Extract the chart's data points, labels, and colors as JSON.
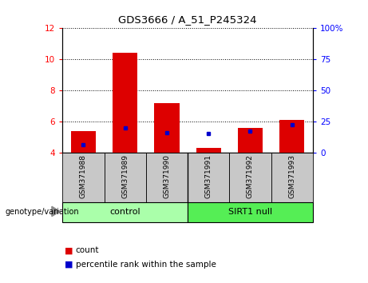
{
  "title": "GDS3666 / A_51_P245324",
  "samples": [
    "GSM371988",
    "GSM371989",
    "GSM371990",
    "GSM371991",
    "GSM371992",
    "GSM371993"
  ],
  "red_values": [
    5.38,
    10.42,
    7.18,
    4.32,
    5.62,
    6.12
  ],
  "blue_values": [
    4.52,
    5.62,
    5.3,
    5.22,
    5.42,
    5.82
  ],
  "ylim_left": [
    4,
    12
  ],
  "ylim_right": [
    0,
    100
  ],
  "left_ticks": [
    4,
    6,
    8,
    10,
    12
  ],
  "right_ticks": [
    0,
    25,
    50,
    75,
    100
  ],
  "right_tick_labels": [
    "0",
    "25",
    "50",
    "75",
    "100%"
  ],
  "bar_bottom": 4.0,
  "bar_width": 0.6,
  "red_color": "#dd0000",
  "blue_color": "#0000cc",
  "control_label": "control",
  "null_label": "SIRT1 null",
  "genotype_label": "genotype/variation",
  "legend_red": "count",
  "legend_blue": "percentile rank within the sample",
  "control_color": "#aaffaa",
  "null_color": "#55ee55",
  "label_bg": "#c8c8c8"
}
